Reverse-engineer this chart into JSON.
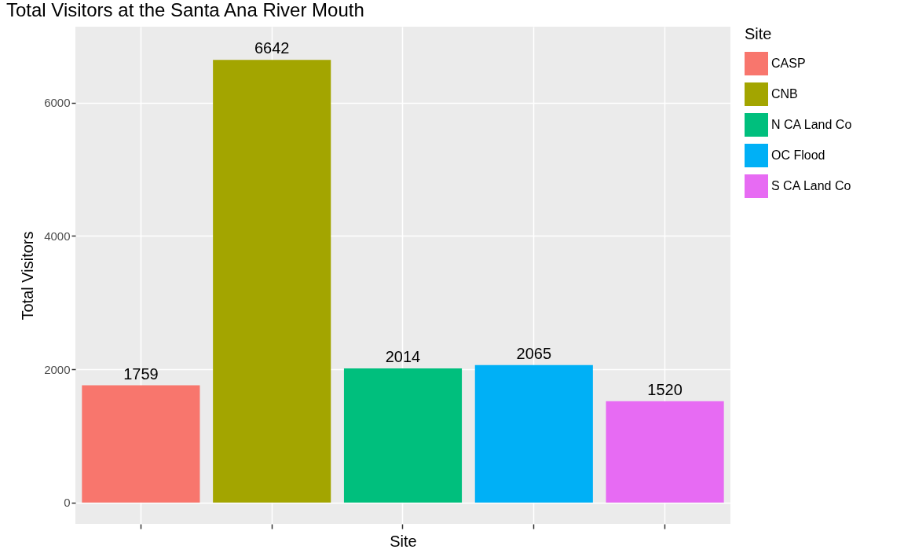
{
  "chart_data": {
    "type": "bar",
    "title": "Total Visitors at the Santa Ana River Mouth",
    "xlabel": "Site",
    "ylabel": "Total Visitors",
    "legend_title": "Site",
    "categories": [
      null,
      null,
      null,
      null,
      null
    ],
    "series": [
      {
        "name": "CASP",
        "color": "#f8766d",
        "values": [
          1759,
          null,
          null,
          null,
          null
        ]
      },
      {
        "name": "CNB",
        "color": "#a3a500",
        "values": [
          null,
          6642,
          null,
          null,
          null
        ]
      },
      {
        "name": "N CA Land Co",
        "color": "#00bf7d",
        "values": [
          null,
          null,
          2014,
          null,
          null
        ]
      },
      {
        "name": "OC Flood",
        "color": "#00b0f6",
        "values": [
          null,
          null,
          null,
          2065,
          null
        ]
      },
      {
        "name": "S CA Land Co",
        "color": "#e76bf3",
        "values": [
          null,
          null,
          null,
          null,
          1520
        ]
      }
    ],
    "ylim": [
      -320,
      7140
    ],
    "yticks": [
      0,
      2000,
      4000,
      6000
    ],
    "grid": true,
    "legend": "right",
    "data_labels": true,
    "tick_labels": "y"
  }
}
